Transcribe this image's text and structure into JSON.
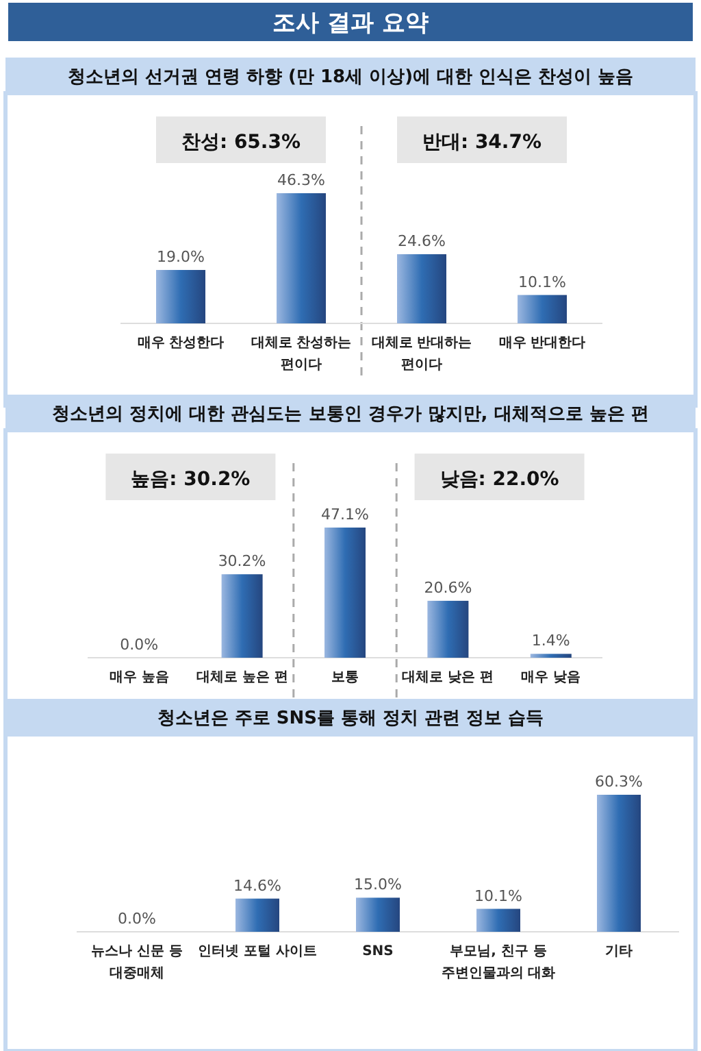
{
  "chart_data": [
    {
      "type": "bar",
      "title": "조사 결과 요약",
      "subtitle": "청소년의 선거권 연령 하향 (만 18세 이상)에 대한 인식은 찬성이 높음",
      "categories": [
        "매우 찬성한다",
        "대체로 찬성하는 편이다",
        "대체로 반대하는 편이다",
        "매우 반대한다"
      ],
      "values": [
        19.0,
        46.3,
        24.6,
        10.1
      ],
      "value_labels": [
        "19.0%",
        "46.3%",
        "24.6%",
        "10.1%"
      ],
      "color": "#2f6db3",
      "annotations": [
        "찬성: 65.3%",
        "반대: 34.7%"
      ]
    },
    {
      "type": "bar",
      "title": "청소년의 정치에 대한 관심도는 보통인 경우가 많지만, 대체적으로 높은 편",
      "categories": [
        "매우 높음",
        "대체로 높은 편",
        "보통",
        "대체로 낮은 편",
        "매우 낮음"
      ],
      "values": [
        0.0,
        30.2,
        47.1,
        20.6,
        1.4
      ],
      "value_labels": [
        "0.0%",
        "30.2%",
        "47.1%",
        "20.6%",
        "1.4%"
      ],
      "color": "#2f6db3",
      "annotations": [
        "높음: 30.2%",
        "낮음: 22.0%"
      ]
    },
    {
      "type": "bar",
      "title": "청소년은 주로 SNS를 통해 정치 관련 정보 습득",
      "categories": [
        "뉴스나 신문 등 대중매체",
        "인터넷 포털 사이트",
        "SNS",
        "부모님, 친구 등 주변인물과의 대화",
        "기타"
      ],
      "values": [
        0.0,
        14.6,
        15.0,
        10.1,
        60.3
      ],
      "value_labels": [
        "0.0%",
        "14.6%",
        "15.0%",
        "10.1%",
        "60.3%"
      ],
      "color": "#2f6db3"
    }
  ]
}
